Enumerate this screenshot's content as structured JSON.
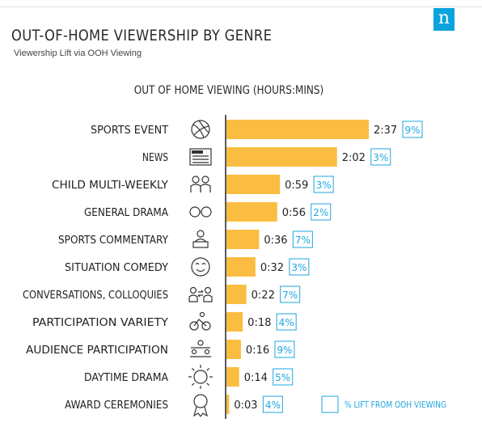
{
  "header": {
    "title": "OUT-OF-HOME VIEWERSHIP BY GENRE",
    "subtitle": "Viewership Lift via OOH Viewing",
    "logo_letter": "n"
  },
  "colors": {
    "bar": "#fbbd41",
    "lift_box": "#1fa6df",
    "axis": "#222222",
    "logo": "#0aa3de"
  },
  "chart_data": {
    "type": "bar",
    "orientation": "horizontal",
    "title": "OUT OF HOME VIEWING (HOURS:MINS)",
    "categories": [
      "SPORTS EVENT",
      "NEWS",
      "CHILD MULTI-WEEKLY",
      "GENERAL DRAMA",
      "SPORTS COMMENTARY",
      "SITUATION COMEDY",
      "CONVERSATIONS, COLLOQUIES",
      "PARTICIPATION VARIETY",
      "AUDIENCE PARTICIPATION",
      "DAYTIME DRAMA",
      "AWARD CEREMONIES"
    ],
    "icons": [
      "volleyball-icon",
      "newspaper-icon",
      "children-icon",
      "glasses-icon",
      "commentator-icon",
      "smiley-icon",
      "conversation-icon",
      "cycling-icon",
      "audience-icon",
      "sun-icon",
      "award-ribbon-icon"
    ],
    "series": [
      {
        "values": [
          157,
          122,
          59,
          56,
          36,
          32,
          22,
          18,
          16,
          14,
          3
        ],
        "value_labels": [
          "2:37",
          "2:02",
          "0:59",
          "0:56",
          "0:36",
          "0:32",
          "0:22",
          "0:18",
          "0:16",
          "0:14",
          "0:03"
        ]
      },
      {
        "name": "% LIFT FROM OOH VIEWING",
        "values": [
          9,
          3,
          3,
          2,
          7,
          3,
          7,
          4,
          9,
          5,
          4
        ],
        "value_labels": [
          "9%",
          "3%",
          "3%",
          "2%",
          "7%",
          "3%",
          "7%",
          "4%",
          "9%",
          "5%",
          "4%"
        ]
      }
    ],
    "xlim": [
      0,
      157
    ],
    "legend": {
      "label": "% LIFT FROM OOH VIEWING",
      "placement": "bottom-right"
    },
    "grid": false
  }
}
